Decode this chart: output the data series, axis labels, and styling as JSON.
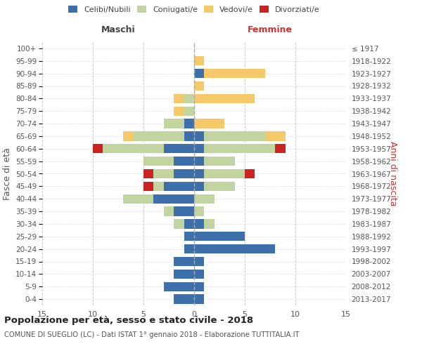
{
  "age_groups": [
    "0-4",
    "5-9",
    "10-14",
    "15-19",
    "20-24",
    "25-29",
    "30-34",
    "35-39",
    "40-44",
    "45-49",
    "50-54",
    "55-59",
    "60-64",
    "65-69",
    "70-74",
    "75-79",
    "80-84",
    "85-89",
    "90-94",
    "95-99",
    "100+"
  ],
  "birth_years": [
    "2013-2017",
    "2008-2012",
    "2003-2007",
    "1998-2002",
    "1993-1997",
    "1988-1992",
    "1983-1987",
    "1978-1982",
    "1973-1977",
    "1968-1972",
    "1963-1967",
    "1958-1962",
    "1953-1957",
    "1948-1952",
    "1943-1947",
    "1938-1942",
    "1933-1937",
    "1928-1932",
    "1923-1927",
    "1918-1922",
    "≤ 1917"
  ],
  "colors": {
    "celibe": "#3d6faa",
    "coniugato": "#c2d4a0",
    "vedovo": "#f5c96a",
    "divorziato": "#cc2222"
  },
  "males": {
    "celibe": [
      2,
      3,
      2,
      2,
      1,
      1,
      1,
      2,
      4,
      3,
      2,
      2,
      3,
      1,
      1,
      0,
      0,
      0,
      0,
      0,
      0
    ],
    "coniugato": [
      0,
      0,
      0,
      0,
      0,
      0,
      1,
      1,
      3,
      1,
      2,
      3,
      6,
      5,
      2,
      1,
      1,
      0,
      0,
      0,
      0
    ],
    "vedovo": [
      0,
      0,
      0,
      0,
      0,
      0,
      0,
      0,
      0,
      0,
      0,
      0,
      0,
      1,
      0,
      1,
      1,
      0,
      0,
      0,
      0
    ],
    "divorziato": [
      0,
      0,
      0,
      0,
      0,
      0,
      0,
      0,
      0,
      1,
      1,
      0,
      1,
      0,
      0,
      0,
      0,
      0,
      0,
      0,
      0
    ]
  },
  "females": {
    "nubile": [
      1,
      1,
      1,
      1,
      8,
      5,
      1,
      0,
      0,
      1,
      1,
      1,
      1,
      1,
      0,
      0,
      0,
      0,
      1,
      0,
      0
    ],
    "coniugata": [
      0,
      0,
      0,
      0,
      0,
      0,
      1,
      1,
      2,
      3,
      4,
      3,
      7,
      6,
      0,
      0,
      0,
      0,
      0,
      0,
      0
    ],
    "vedova": [
      0,
      0,
      0,
      0,
      0,
      0,
      0,
      0,
      0,
      0,
      0,
      0,
      0,
      2,
      3,
      0,
      6,
      1,
      6,
      1,
      0
    ],
    "divorziata": [
      0,
      0,
      0,
      0,
      0,
      0,
      0,
      0,
      0,
      0,
      1,
      0,
      1,
      0,
      0,
      0,
      0,
      0,
      0,
      0,
      0
    ]
  },
  "xlim": 15,
  "title": "Popolazione per età, sesso e stato civile - 2018",
  "subtitle": "COMUNE DI SUEGLIO (LC) - Dati ISTAT 1° gennaio 2018 - Elaborazione TUTTITALIA.IT",
  "ylabel_left": "Fasce di età",
  "ylabel_right": "Anni di nascita",
  "xlabel_left": "Maschi",
  "xlabel_right": "Femmine"
}
